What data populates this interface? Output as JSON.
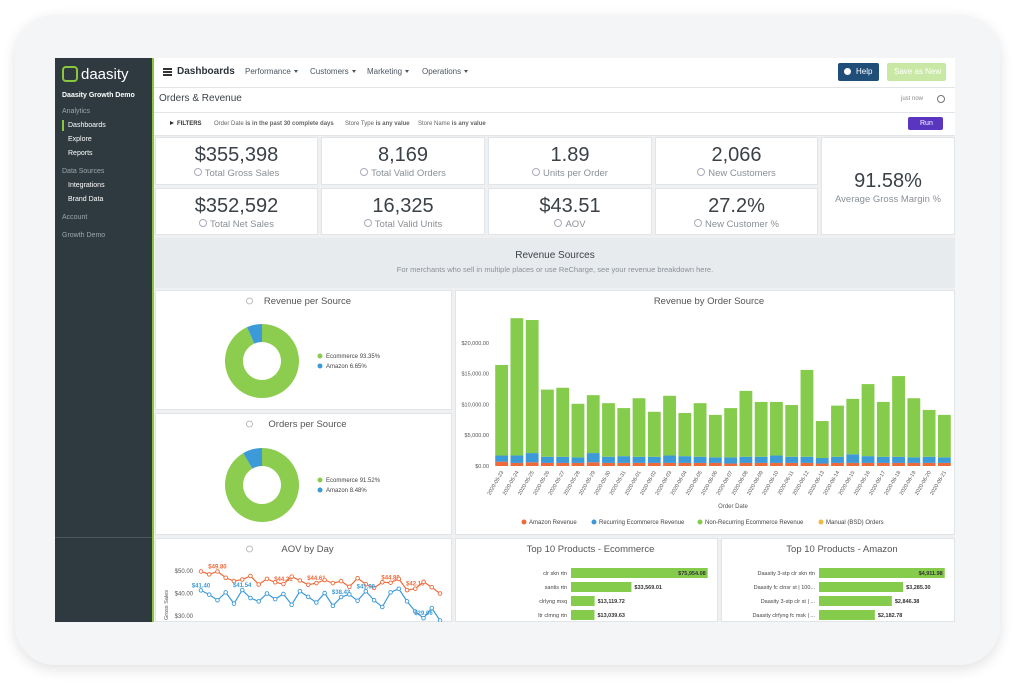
{
  "sidebar": {
    "brand": "daasity",
    "account": "Daasity Growth Demo",
    "items": [
      "Analytics",
      "Dashboards",
      "Explore",
      "Reports",
      "Data Sources",
      "Integrations",
      "Brand Data",
      "Account",
      "Growth Demo"
    ]
  },
  "topbar": {
    "title": "Dashboards",
    "nav": [
      "Performance",
      "Customers",
      "Marketing",
      "Operations"
    ],
    "help": "Help",
    "save": "Save as New"
  },
  "header": {
    "title": "Orders & Revenue",
    "updated": "just now"
  },
  "filters": {
    "label": "FILTERS",
    "items": [
      {
        "field": "Order Date",
        "condition": "is in the past 30 complete days"
      },
      {
        "field": "Store Type",
        "condition": "is any value"
      },
      {
        "field": "Store Name",
        "condition": "is any value"
      }
    ],
    "run": "Run"
  },
  "kpis": [
    {
      "value": "$355,398",
      "label": "Total Gross Sales"
    },
    {
      "value": "8,169",
      "label": "Total Valid Orders"
    },
    {
      "value": "1.89",
      "label": "Units per Order"
    },
    {
      "value": "2,066",
      "label": "New Customers"
    },
    {
      "value": "$352,592",
      "label": "Total Net Sales"
    },
    {
      "value": "16,325",
      "label": "Total Valid Units"
    },
    {
      "value": "$43.51",
      "label": "AOV"
    },
    {
      "value": "27.2%",
      "label": "New Customer %"
    },
    {
      "value": "91.58%",
      "label": "Average Gross Margin %"
    }
  ],
  "section": {
    "title": "Revenue Sources",
    "subtitle": "For merchants who sell in multiple places or use ReCharge, see your revenue breakdown here."
  },
  "chart_data": [
    {
      "type": "pie",
      "title": "Revenue per Source",
      "categories": [
        "Ecommerce",
        "Amazon"
      ],
      "values": [
        93.35,
        6.65
      ],
      "value_labels": [
        "93.35%",
        "6.65%"
      ],
      "colors": [
        "#8ccd4f",
        "#3d9ad8"
      ]
    },
    {
      "type": "pie",
      "title": "Orders per Source",
      "categories": [
        "Ecommerce",
        "Amazon"
      ],
      "values": [
        91.52,
        8.48
      ],
      "value_labels": [
        "91.52%",
        "8.48%"
      ],
      "colors": [
        "#8ccd4f",
        "#3d9ad8"
      ]
    },
    {
      "type": "bar",
      "title": "Revenue by Order Source",
      "stacked": true,
      "x_label": "Order Date",
      "legend": "bottom",
      "grid": false,
      "categories": [
        "2020-05-23",
        "2020-05-24",
        "2020-05-25",
        "2020-05-26",
        "2020-05-27",
        "2020-05-28",
        "2020-05-29",
        "2020-05-30",
        "2020-05-31",
        "2020-06-01",
        "2020-06-02",
        "2020-06-03",
        "2020-06-04",
        "2020-06-05",
        "2020-06-06",
        "2020-06-07",
        "2020-06-08",
        "2020-06-09",
        "2020-06-10",
        "2020-06-11",
        "2020-06-12",
        "2020-06-13",
        "2020-06-14",
        "2020-06-15",
        "2020-06-16",
        "2020-06-17",
        "2020-06-18",
        "2020-06-19",
        "2020-06-20",
        "2020-06-21"
      ],
      "series": [
        {
          "name": "Amazon Revenue",
          "color": "#ee6a3a",
          "values": [
            700,
            500,
            600,
            500,
            500,
            500,
            600,
            500,
            500,
            500,
            500,
            500,
            500,
            500,
            500,
            400,
            500,
            500,
            500,
            500,
            500,
            400,
            500,
            500,
            500,
            500,
            500,
            500,
            500,
            500
          ]
        },
        {
          "name": "Recurring Ecommerce Revenue",
          "color": "#3d9ad8",
          "values": [
            1000,
            1200,
            1500,
            1000,
            1000,
            900,
            1500,
            1000,
            1100,
            1000,
            1000,
            1200,
            1100,
            1000,
            900,
            1000,
            1000,
            1000,
            1200,
            1000,
            1000,
            900,
            1000,
            1400,
            1100,
            1000,
            1000,
            900,
            1000,
            900
          ]
        },
        {
          "name": "Non-Recurring Ecommerce Revenue",
          "color": "#86cc4c",
          "values": [
            14700,
            22300,
            21600,
            10900,
            11200,
            8700,
            9400,
            8700,
            7800,
            9500,
            7300,
            9700,
            7000,
            8700,
            6900,
            8000,
            10700,
            8900,
            8700,
            8400,
            14100,
            6000,
            8300,
            9000,
            11700,
            8900,
            13100,
            9600,
            7600,
            6900
          ]
        },
        {
          "name": "Manual (BSD) Orders",
          "color": "#f3b844",
          "values": [
            0,
            0,
            0,
            0,
            0,
            0,
            0,
            0,
            0,
            0,
            0,
            0,
            0,
            0,
            0,
            0,
            0,
            0,
            0,
            0,
            0,
            0,
            0,
            0,
            0,
            0,
            0,
            0,
            0,
            0
          ]
        }
      ],
      "ylim": [
        0,
        25000
      ],
      "yticks": [
        {
          "value": 0,
          "label": "$0.00"
        },
        {
          "value": 5000,
          "label": "$5,000.00"
        },
        {
          "value": 10000,
          "label": "$10,000.00"
        },
        {
          "value": 15000,
          "label": "$15,000.00"
        },
        {
          "value": 20000,
          "label": "$20,000.00"
        }
      ]
    },
    {
      "type": "line",
      "title": "AOV by Day",
      "y_label": "Gross Sales",
      "grid": false,
      "ylim": [
        26,
        54
      ],
      "yticks": [
        {
          "value": 30,
          "label": "$30.00"
        },
        {
          "value": 40,
          "label": "$40.00"
        },
        {
          "value": 50,
          "label": "$50.00"
        }
      ],
      "series": [
        {
          "color": "#ee6a3a",
          "values": [
            49.8,
            48.5,
            49.8,
            47.0,
            45.5,
            46.2,
            47.8,
            44.0,
            46.5,
            45.0,
            44.21,
            47.5,
            45.8,
            43.9,
            44.61,
            46.0,
            44.6,
            45.5,
            43.0,
            46.8,
            44.1,
            42.5,
            45.0,
            44.8,
            46.5,
            41.5,
            42.13,
            45.2,
            42.8,
            40.0
          ],
          "value_labels": [
            null,
            null,
            "$49.80",
            null,
            null,
            null,
            null,
            null,
            null,
            null,
            "$44.21",
            null,
            null,
            null,
            "$44.61",
            null,
            null,
            null,
            null,
            null,
            null,
            null,
            null,
            "$44.80",
            null,
            null,
            "$42.13",
            null,
            null,
            null
          ]
        },
        {
          "color": "#3d9ad8",
          "values": [
            41.4,
            39.5,
            37.0,
            40.5,
            35.5,
            41.54,
            38.0,
            36.5,
            40.0,
            37.5,
            39.8,
            35.0,
            41.0,
            38.5,
            36.0,
            40.2,
            34.5,
            38.43,
            39.6,
            36.8,
            41.0,
            37.0,
            34.0,
            40.5,
            42.1,
            36.5,
            32.0,
            29.06,
            33.5,
            28.0
          ],
          "value_labels": [
            "$41.40",
            null,
            null,
            null,
            null,
            "$41.54",
            null,
            null,
            null,
            null,
            null,
            null,
            null,
            null,
            null,
            null,
            null,
            "$38.43",
            null,
            null,
            "$41.00",
            null,
            null,
            null,
            null,
            null,
            null,
            "$29.06",
            null,
            null
          ]
        }
      ]
    },
    {
      "type": "hbar",
      "title": "Top 10 Products - Ecommerce",
      "color": "#86cc4c",
      "xlim": [
        0,
        80000
      ],
      "categories": [
        "clr skn rtn",
        "santis rtn",
        "clrlyng msq",
        "ltr clmng rtn"
      ],
      "values": [
        75954.08,
        33569.01,
        13119.72,
        13039.63
      ],
      "value_labels": [
        "$75,954.08",
        "$33,569.01",
        "$13,119.72",
        "$13,039.63"
      ]
    },
    {
      "type": "hbar",
      "title": "Top 10 Products - Amazon",
      "color": "#86cc4c",
      "xlim": [
        0,
        5000
      ],
      "categories": [
        "Daasity 3-stp clr skn rtn",
        "Daasity fc clnsr st | 100...",
        "Daasity 3-stp clr st | ...",
        "Daasity clrfyng fc msk | ..."
      ],
      "values": [
        4911.98,
        3285.3,
        2846.38,
        2182.78
      ],
      "value_labels": [
        "$4,911.98",
        "$3,285.30",
        "$2,846.38",
        "$2,182.78"
      ]
    }
  ]
}
